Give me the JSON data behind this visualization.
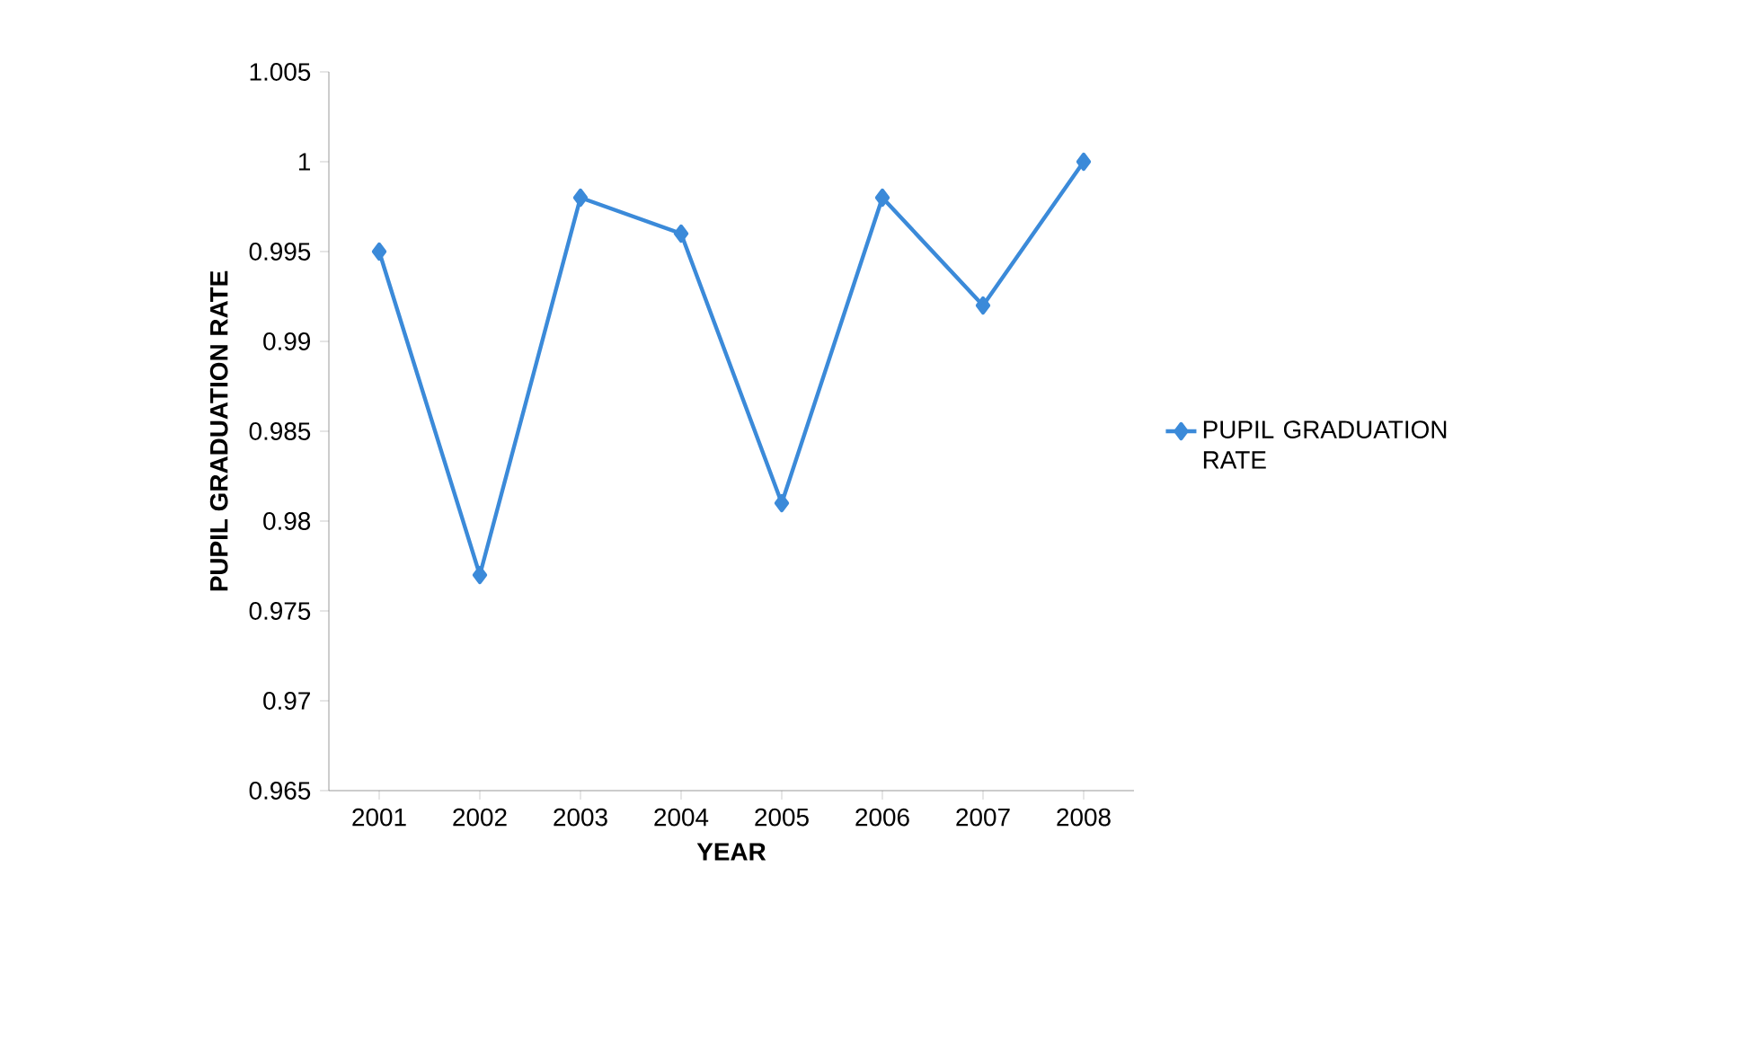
{
  "chart_data": {
    "type": "line",
    "xlabel": "YEAR",
    "ylabel": "PUPIL GRADUATION RATE",
    "categories": [
      "2001",
      "2002",
      "2003",
      "2004",
      "2005",
      "2006",
      "2007",
      "2008"
    ],
    "series": [
      {
        "name": "PUPIL GRADUATION RATE",
        "color": "#3b8ad9",
        "values": [
          0.995,
          0.977,
          0.998,
          0.996,
          0.981,
          0.998,
          0.992,
          1.0
        ]
      }
    ],
    "ylim": [
      0.965,
      1.005
    ],
    "yticks": [
      0.965,
      0.97,
      0.975,
      0.98,
      0.985,
      0.99,
      0.995,
      1,
      1.005
    ],
    "grid": false,
    "legend": "right",
    "marker": "diamond",
    "line_style": "solid"
  }
}
